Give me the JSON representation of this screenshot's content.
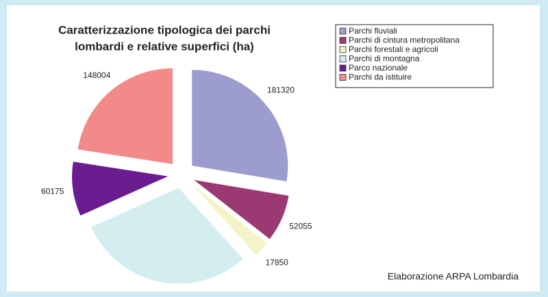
{
  "chart_data": {
    "type": "pie",
    "title": [
      "Caratterizzazione tipologica dei  parchi",
      "lombardi e relative superfici (ha)"
    ],
    "categories": [
      "Parchi fluviali",
      "Parchi di cintura metropolitana",
      "Parchi forestali e agricoli",
      "Parchi di montagna",
      "Parco nazionale",
      "Parchi da istituire"
    ],
    "values": [
      181320,
      52055,
      17850,
      196934,
      60175,
      148004
    ],
    "colors": [
      "#9c9ccf",
      "#9b3a72",
      "#f4f4c8",
      "#d3edf1",
      "#6a1d90",
      "#f28a8a"
    ],
    "legend": "top-right",
    "note": "Elaborazione ARPA Lombardia"
  }
}
